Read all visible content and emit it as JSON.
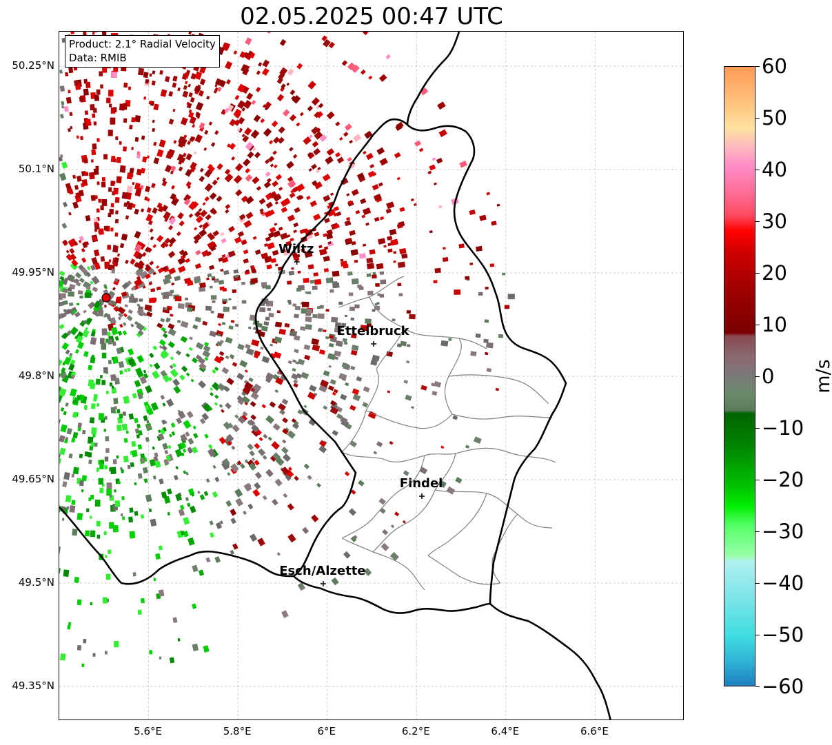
{
  "title": "02.05.2025 00:47 UTC",
  "info": {
    "product": "Product: 2.1° Radial Velocity",
    "data": "Data: RMIB"
  },
  "map": {
    "lon_range": [
      5.4,
      6.8
    ],
    "lat_range": [
      49.3,
      50.3
    ],
    "lat_ticks": [
      {
        "value": 50.25,
        "label": "50.25°N"
      },
      {
        "value": 50.1,
        "label": "50.1°N"
      },
      {
        "value": 49.95,
        "label": "49.95°N"
      },
      {
        "value": 49.8,
        "label": "49.8°N"
      },
      {
        "value": 49.65,
        "label": "49.65°N"
      },
      {
        "value": 49.5,
        "label": "49.5°N"
      },
      {
        "value": 49.35,
        "label": "49.35°N"
      }
    ],
    "lon_ticks": [
      {
        "value": 5.6,
        "label": "5.6°E"
      },
      {
        "value": 5.8,
        "label": "5.8°E"
      },
      {
        "value": 6.0,
        "label": "6°E"
      },
      {
        "value": 6.2,
        "label": "6.2°E"
      },
      {
        "value": 6.4,
        "label": "6.4°E"
      },
      {
        "value": 6.6,
        "label": "6.6°E"
      }
    ],
    "grid": true,
    "radar_site": {
      "lon": 5.505,
      "lat": 49.914
    },
    "cities": [
      {
        "name": "Wiltz",
        "lon": 5.932,
        "lat": 49.966
      },
      {
        "name": "Ettelbruck",
        "lon": 6.104,
        "lat": 49.847
      },
      {
        "name": "Findel",
        "lon": 6.212,
        "lat": 49.626
      },
      {
        "name": "Esch/Alzette",
        "lon": 5.991,
        "lat": 49.499
      }
    ]
  },
  "colorbar": {
    "unit": "m/s",
    "min": -60,
    "max": 60,
    "ticks": [
      60,
      50,
      40,
      30,
      20,
      10,
      0,
      -10,
      -20,
      -30,
      -40,
      -50,
      -60
    ],
    "tick_labels": [
      "60",
      "50",
      "40",
      "30",
      "20",
      "10",
      "0",
      "−10",
      "−20",
      "−30",
      "−40",
      "−50",
      "−60"
    ]
  },
  "colors": {
    "inbound_strong": "#00e000",
    "inbound_medium": "#0a9a0a",
    "near_zero": "#7a7a78",
    "outbound_medium": "#b00000",
    "outbound_strong": "#e00000",
    "radar_marker": "#e00000"
  }
}
